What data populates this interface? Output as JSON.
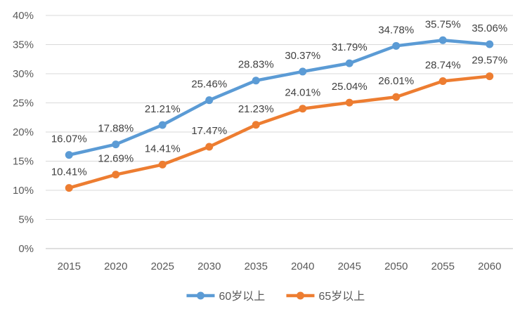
{
  "chart_data": {
    "type": "line",
    "x": [
      "2015",
      "2020",
      "2025",
      "2030",
      "2035",
      "2040",
      "2045",
      "2050",
      "2055",
      "2060"
    ],
    "ylim": [
      0,
      40
    ],
    "yticks": [
      "0%",
      "5%",
      "10%",
      "15%",
      "20%",
      "25%",
      "30%",
      "35%",
      "40%"
    ],
    "ytick_values": [
      0,
      5,
      10,
      15,
      20,
      25,
      30,
      35,
      40
    ],
    "grid": true,
    "legend_position": "bottom",
    "series": [
      {
        "name": "60岁以上",
        "color": "#5B9BD5",
        "values": [
          16.07,
          17.88,
          21.21,
          25.46,
          28.83,
          30.37,
          31.79,
          34.78,
          35.75,
          35.06
        ],
        "labels": [
          "16.07%",
          "17.88%",
          "21.21%",
          "25.46%",
          "28.83%",
          "30.37%",
          "31.79%",
          "34.78%",
          "35.75%",
          "35.06%"
        ]
      },
      {
        "name": "65岁以上",
        "color": "#ED7D31",
        "values": [
          10.41,
          12.69,
          14.41,
          17.47,
          21.23,
          24.01,
          25.04,
          26.01,
          28.74,
          29.57
        ],
        "labels": [
          "10.41%",
          "12.69%",
          "14.41%",
          "17.47%",
          "21.23%",
          "24.01%",
          "25.04%",
          "26.01%",
          "28.74%",
          "29.57%"
        ]
      }
    ]
  }
}
